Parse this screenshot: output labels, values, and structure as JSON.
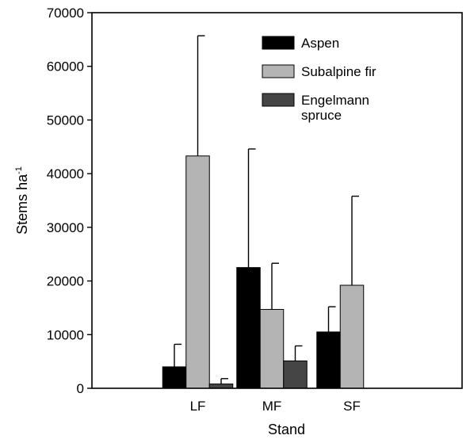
{
  "chart_data": {
    "type": "bar",
    "title": "",
    "xlabel": "Stand",
    "ylabel": {
      "main": "Stems ha",
      "sup": "-1"
    },
    "categories": [
      "LF",
      "MF",
      "SF"
    ],
    "ylim": [
      0,
      70000
    ],
    "yticks": [
      0,
      10000,
      20000,
      30000,
      40000,
      50000,
      60000,
      70000
    ],
    "grid": false,
    "legend_position": "top-right",
    "series": [
      {
        "name": "Aspen",
        "legend_lines": [
          "Aspen"
        ],
        "color": "#000000",
        "values": [
          4000,
          22500,
          10500
        ],
        "error_upper": [
          8200,
          44600,
          15200
        ]
      },
      {
        "name": "Subalpine fir",
        "legend_lines": [
          "Subalpine fir"
        ],
        "color": "#b4b4b4",
        "values": [
          43300,
          14700,
          19200
        ],
        "error_upper": [
          65700,
          23300,
          35800
        ]
      },
      {
        "name": "Engelmann spruce",
        "legend_lines": [
          "Engelmann",
          "spruce"
        ],
        "color": "#454545",
        "values": [
          800,
          5100,
          null
        ],
        "error_upper": [
          1800,
          7900,
          null
        ]
      }
    ]
  }
}
